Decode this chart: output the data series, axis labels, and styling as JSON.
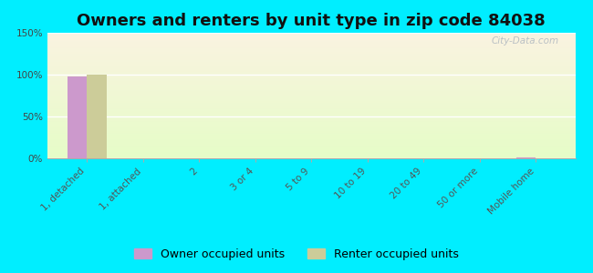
{
  "title": "Owners and renters by unit type in zip code 84038",
  "categories": [
    "1, detached",
    "1, attached",
    "2",
    "3 or 4",
    "5 to 9",
    "10 to 19",
    "20 to 49",
    "50 or more",
    "Mobile home"
  ],
  "owner_values": [
    98,
    0,
    0,
    0,
    0,
    0,
    0,
    0,
    1
  ],
  "renter_values": [
    100,
    0,
    0,
    0,
    0,
    0,
    0,
    0,
    0
  ],
  "owner_color": "#cc99cc",
  "renter_color": "#cccc99",
  "background_outer": "#00eeff",
  "ylim": [
    0,
    150
  ],
  "yticks": [
    0,
    50,
    100,
    150
  ],
  "ytick_labels": [
    "0%",
    "50%",
    "100%",
    "150%"
  ],
  "watermark": "City-Data.com",
  "bar_width": 0.35,
  "legend_owner": "Owner occupied units",
  "legend_renter": "Renter occupied units",
  "title_fontsize": 13,
  "axis_fontsize": 7.5,
  "legend_fontsize": 9
}
